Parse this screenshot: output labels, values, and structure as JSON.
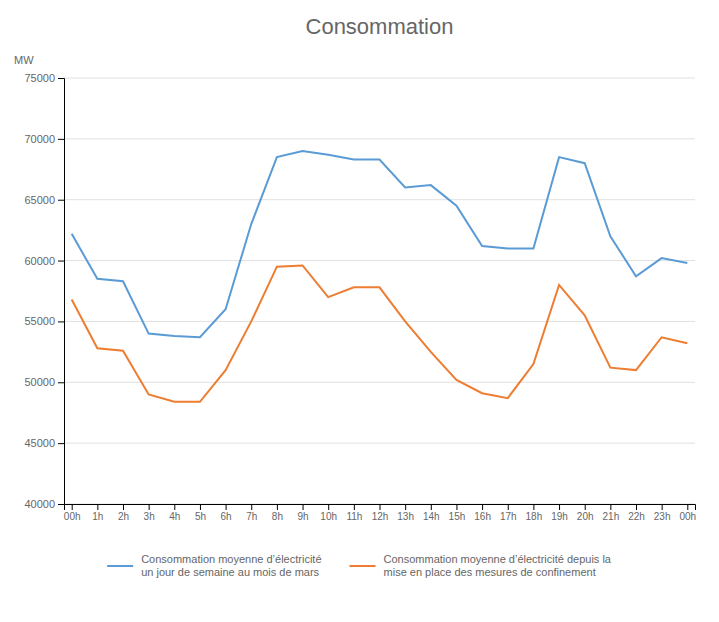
{
  "chart_data": {
    "type": "line",
    "title": "Consommation",
    "ylabel": "MW",
    "categories": [
      "00h",
      "1h",
      "2h",
      "3h",
      "4h",
      "5h",
      "6h",
      "7h",
      "8h",
      "9h",
      "10h",
      "11h",
      "12h",
      "13h",
      "14h",
      "15h",
      "16h",
      "17h",
      "18h",
      "19h",
      "20h",
      "21h",
      "22h",
      "23h",
      "00h"
    ],
    "series": [
      {
        "name": "Consommation moyenne d’électricité\nun jour de semaine au mois de mars",
        "color": "#5B9BD5",
        "values": [
          62200,
          58500,
          58300,
          54000,
          53800,
          53700,
          56000,
          63000,
          68500,
          69000,
          68700,
          68300,
          68300,
          66000,
          66200,
          64500,
          61200,
          61000,
          61000,
          68500,
          68000,
          62000,
          58700,
          60200,
          59800
        ]
      },
      {
        "name": "Consommation moyenne d’électricité depuis la\nmise en place des mesures de confinement",
        "color": "#ED7D31",
        "values": [
          56800,
          52800,
          52600,
          49000,
          48400,
          48400,
          51000,
          55000,
          59500,
          59600,
          57000,
          57800,
          57800,
          55000,
          52500,
          50200,
          49100,
          48700,
          51500,
          58000,
          55500,
          51200,
          51000,
          53700,
          53200
        ]
      }
    ],
    "ylim": [
      40000,
      75000
    ],
    "yticks": [
      40000,
      45000,
      50000,
      55000,
      60000,
      65000,
      70000,
      75000
    ],
    "grid": true,
    "legend": "bottom"
  }
}
